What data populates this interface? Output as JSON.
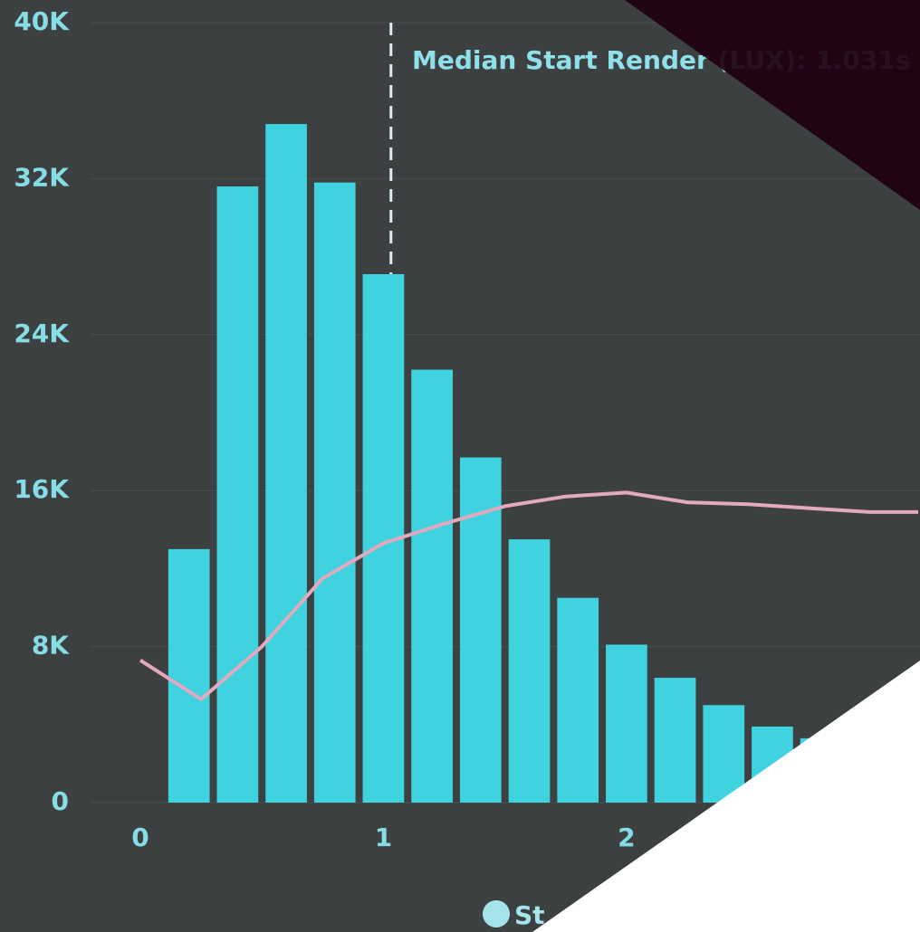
{
  "chart_data": {
    "type": "histogram",
    "bins": [
      0.1,
      0.3,
      0.5,
      0.7,
      0.9,
      1.1,
      1.3,
      1.5,
      1.7,
      1.9,
      2.1,
      2.3,
      2.5,
      2.7,
      2.9
    ],
    "series": [
      {
        "name": "St",
        "color": "#3ed3de",
        "values": [
          13000,
          31600,
          34800,
          31800,
          27100,
          22200,
          17700,
          13500,
          10500,
          8100,
          6400,
          5000,
          3900,
          3300
        ]
      },
      {
        "color": "#e3a9bf",
        "x": [
          0,
          0.25,
          0.5,
          0.75,
          1.0,
          1.25,
          1.5,
          1.75,
          2.0,
          2.25,
          2.5,
          2.75,
          3.0,
          3.2
        ],
        "values": [
          7300,
          5300,
          8000,
          11500,
          13300,
          14300,
          15200,
          15700,
          15900,
          15400,
          15300,
          15100,
          14900,
          14900
        ]
      }
    ],
    "annotation": {
      "text": "Median Start Render (LUX): 1.031s",
      "x": 1.031
    },
    "xlim": [
      0,
      3.2
    ],
    "xticks": [
      0,
      1,
      2
    ],
    "ylim": [
      0,
      40000
    ],
    "yticks": [
      0,
      {
        "value": 8000,
        "label": "8K"
      },
      {
        "value": 16000,
        "label": "16K"
      },
      {
        "value": 24000,
        "label": "24K"
      },
      {
        "value": 32000,
        "label": "32K"
      },
      {
        "value": 40000,
        "label": "40K"
      }
    ],
    "grid": true
  }
}
